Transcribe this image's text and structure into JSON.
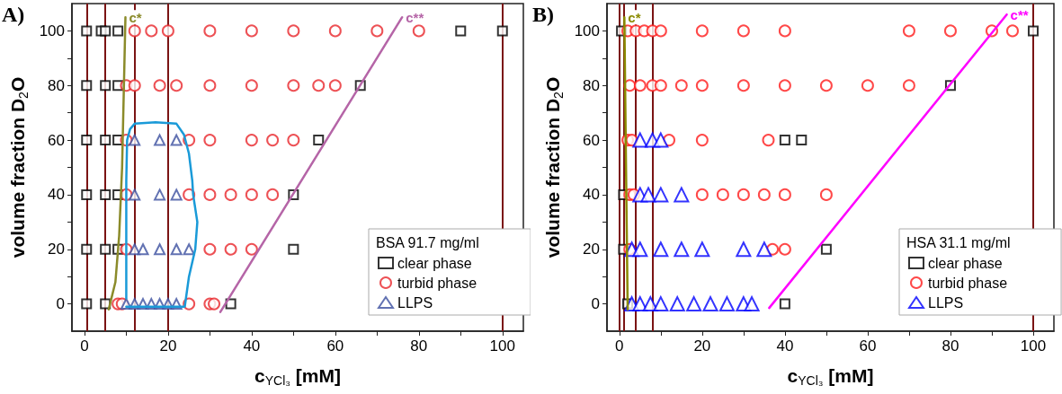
{
  "chart_data": [
    {
      "type": "scatter",
      "annotations": [
        "A)"
      ],
      "xlabel": "c$_{YCl₃}$ [mM]",
      "ylabel": "volume fraction D$_{2}$O",
      "legend_title": "BSA 91.7 mg/ml",
      "legend": "bottom right",
      "grid": false,
      "xlim": [
        -3,
        105
      ],
      "ylim": [
        -10,
        110
      ],
      "xticks": [
        0,
        {
          "value": 10,
          "label": null
        },
        20,
        {
          "value": 30,
          "label": null
        },
        40,
        {
          "value": 50,
          "label": null
        },
        60,
        {
          "value": 70,
          "label": null
        },
        80,
        {
          "value": 90,
          "label": null
        },
        100
      ],
      "yticks": [
        0,
        {
          "value": 10,
          "label": null
        },
        20,
        {
          "value": 30,
          "label": null
        },
        40,
        {
          "value": 50,
          "label": null
        },
        60,
        {
          "value": 70,
          "label": null
        },
        80,
        {
          "value": 90,
          "label": null
        },
        100
      ],
      "ref_lines": [
        {
          "axis": "x",
          "value": 0.5,
          "label": null,
          "color": "#7b1414"
        },
        {
          "axis": "x",
          "value": 5,
          "label": null,
          "color": "#7b1414"
        },
        {
          "axis": "x",
          "value": 12,
          "label": null,
          "color": "#7b1414"
        },
        {
          "axis": "x",
          "value": 20,
          "label": null,
          "color": "#7b1414"
        },
        {
          "axis": "x",
          "value": 100,
          "label": null,
          "color": "#7b1414"
        }
      ],
      "series": [
        {
          "name": "clear phase",
          "marker": "square",
          "color": "#000000",
          "x": [
            0.5,
            4,
            5,
            8,
            90,
            100,
            0.5,
            5,
            8,
            66,
            0.5,
            5,
            8,
            56,
            0.5,
            5,
            8,
            50,
            0.5,
            5,
            8,
            50,
            0.5,
            5,
            35
          ],
          "values": [
            100,
            100,
            100,
            100,
            100,
            100,
            80,
            80,
            80,
            80,
            60,
            60,
            60,
            60,
            40,
            40,
            40,
            40,
            20,
            20,
            20,
            20,
            0,
            0,
            0
          ]
        },
        {
          "name": "turbid phase",
          "marker": "circle",
          "color": "#e8262a",
          "x": [
            12,
            16,
            20,
            30,
            40,
            50,
            60,
            70,
            80,
            10,
            12,
            18,
            22,
            30,
            40,
            50,
            56,
            60,
            10,
            25,
            30,
            40,
            45,
            50,
            10,
            25,
            30,
            35,
            40,
            45,
            10,
            30,
            35,
            40,
            8,
            9,
            25,
            30,
            31
          ],
          "values": [
            100,
            100,
            100,
            100,
            100,
            100,
            100,
            100,
            100,
            80,
            80,
            80,
            80,
            80,
            80,
            80,
            80,
            80,
            60,
            60,
            60,
            60,
            60,
            60,
            40,
            40,
            40,
            40,
            40,
            40,
            20,
            20,
            20,
            20,
            0,
            0,
            0,
            0,
            0
          ]
        },
        {
          "name": "LLPS",
          "marker": "triangle",
          "color": "#3b4f9f",
          "x": [
            12,
            18,
            22,
            12,
            18,
            22,
            12,
            14,
            18,
            22,
            25,
            10,
            12,
            14,
            16,
            18,
            20,
            22
          ],
          "values": [
            60,
            60,
            60,
            40,
            40,
            40,
            20,
            20,
            20,
            20,
            20,
            0,
            0,
            0,
            0,
            0,
            0,
            0
          ]
        },
        {
          "type": "line",
          "color": "#1a9ad8",
          "marker": "none",
          "line_style": "solid",
          "x": [
            10,
            17,
            24,
            25,
            26.5,
            27,
            26,
            25.8,
            25,
            23.8,
            22,
            17,
            12,
            10.9,
            10.2,
            10,
            10,
            10,
            10
          ],
          "values": [
            -1,
            -1,
            -1,
            10,
            20,
            30,
            40,
            45,
            55,
            62,
            66,
            66.5,
            66,
            64,
            60,
            45,
            30,
            15,
            2
          ]
        },
        {
          "type": "line",
          "name": "c*",
          "color": "#8b8b2a",
          "marker": "none",
          "line_style": "solid",
          "x": [
            5.8,
            7.4,
            8.3,
            9,
            9.8
          ],
          "values": [
            -2,
            8,
            25,
            50,
            105
          ]
        },
        {
          "type": "line",
          "name": "c**",
          "color": "#b565a7",
          "marker": "none",
          "line_style": "solid",
          "x": [
            32.5,
            76
          ],
          "values": [
            -3,
            105
          ]
        }
      ]
    },
    {
      "type": "scatter",
      "annotations": [
        "B)"
      ],
      "xlabel": "c$_{YCl₃}$ [mM]",
      "ylabel": "volume fraction D$_{2}$O",
      "legend_title": "HSA 31.1 mg/ml",
      "legend": "bottom right",
      "grid": false,
      "xlim": [
        -3,
        105
      ],
      "ylim": [
        -10,
        110
      ],
      "xticks": [
        0,
        {
          "value": 10,
          "label": null
        },
        20,
        {
          "value": 30,
          "label": null
        },
        40,
        {
          "value": 50,
          "label": null
        },
        60,
        {
          "value": 70,
          "label": null
        },
        80,
        {
          "value": 90,
          "label": null
        },
        100
      ],
      "yticks": [
        0,
        {
          "value": 10,
          "label": null
        },
        20,
        {
          "value": 30,
          "label": null
        },
        40,
        {
          "value": 50,
          "label": null
        },
        60,
        {
          "value": 70,
          "label": null
        },
        80,
        {
          "value": 90,
          "label": null
        },
        100
      ],
      "ref_lines": [
        {
          "axis": "x",
          "value": 0,
          "label": null,
          "color": "#7b1414"
        },
        {
          "axis": "x",
          "value": 1,
          "label": null,
          "color": "#7b1414"
        },
        {
          "axis": "x",
          "value": 4,
          "label": null,
          "color": "#7b1414"
        },
        {
          "axis": "x",
          "value": 8,
          "label": null,
          "color": "#7b1414"
        },
        {
          "axis": "x",
          "value": 100,
          "label": null,
          "color": "#7b1414"
        }
      ],
      "series": [
        {
          "name": "clear phase",
          "marker": "square",
          "color": "#000000",
          "x": [
            0.5,
            100,
            80,
            40,
            44,
            1,
            1,
            50,
            2,
            40
          ],
          "values": [
            100,
            100,
            80,
            60,
            60,
            40,
            20,
            20,
            0,
            0
          ]
        },
        {
          "name": "turbid phase",
          "marker": "circle",
          "color": "#ff1a1a",
          "x": [
            2,
            4,
            6,
            8,
            10,
            20,
            30,
            40,
            70,
            80,
            90,
            95,
            2.5,
            5,
            8,
            10,
            15,
            20,
            30,
            40,
            50,
            60,
            70,
            2,
            3,
            12,
            20,
            36,
            2.5,
            3.5,
            20,
            25,
            30,
            35,
            40,
            50,
            2.5,
            37,
            40
          ],
          "values": [
            100,
            100,
            100,
            100,
            100,
            100,
            100,
            100,
            100,
            100,
            100,
            100,
            80,
            80,
            80,
            80,
            80,
            80,
            80,
            80,
            80,
            80,
            80,
            60,
            60,
            60,
            60,
            60,
            40,
            40,
            40,
            40,
            40,
            40,
            40,
            40,
            20,
            20,
            20
          ]
        },
        {
          "name": "LLPS",
          "marker": "triangle",
          "color": "#0000ff",
          "x": [
            5,
            8,
            10,
            5,
            7,
            10,
            15,
            3,
            5,
            10,
            15,
            20,
            30,
            35,
            3,
            5,
            7.5,
            10,
            14,
            18,
            22,
            26,
            30,
            32
          ],
          "values": [
            60,
            60,
            60,
            40,
            40,
            40,
            40,
            20,
            20,
            20,
            20,
            20,
            20,
            20,
            0,
            0,
            0,
            0,
            0,
            0,
            0,
            0,
            0,
            0
          ]
        },
        {
          "type": "line",
          "name": "c*",
          "color": "#8b8b00",
          "marker": "none",
          "line_style": "solid",
          "x": [
            2,
            1.6,
            1.2
          ],
          "values": [
            -2,
            50,
            105
          ]
        },
        {
          "type": "line",
          "name": "c**",
          "color": "#ff00ff",
          "marker": "none",
          "line_style": "solid",
          "x": [
            36.2,
            93.6
          ],
          "values": [
            -1.5,
            106
          ]
        }
      ]
    }
  ]
}
